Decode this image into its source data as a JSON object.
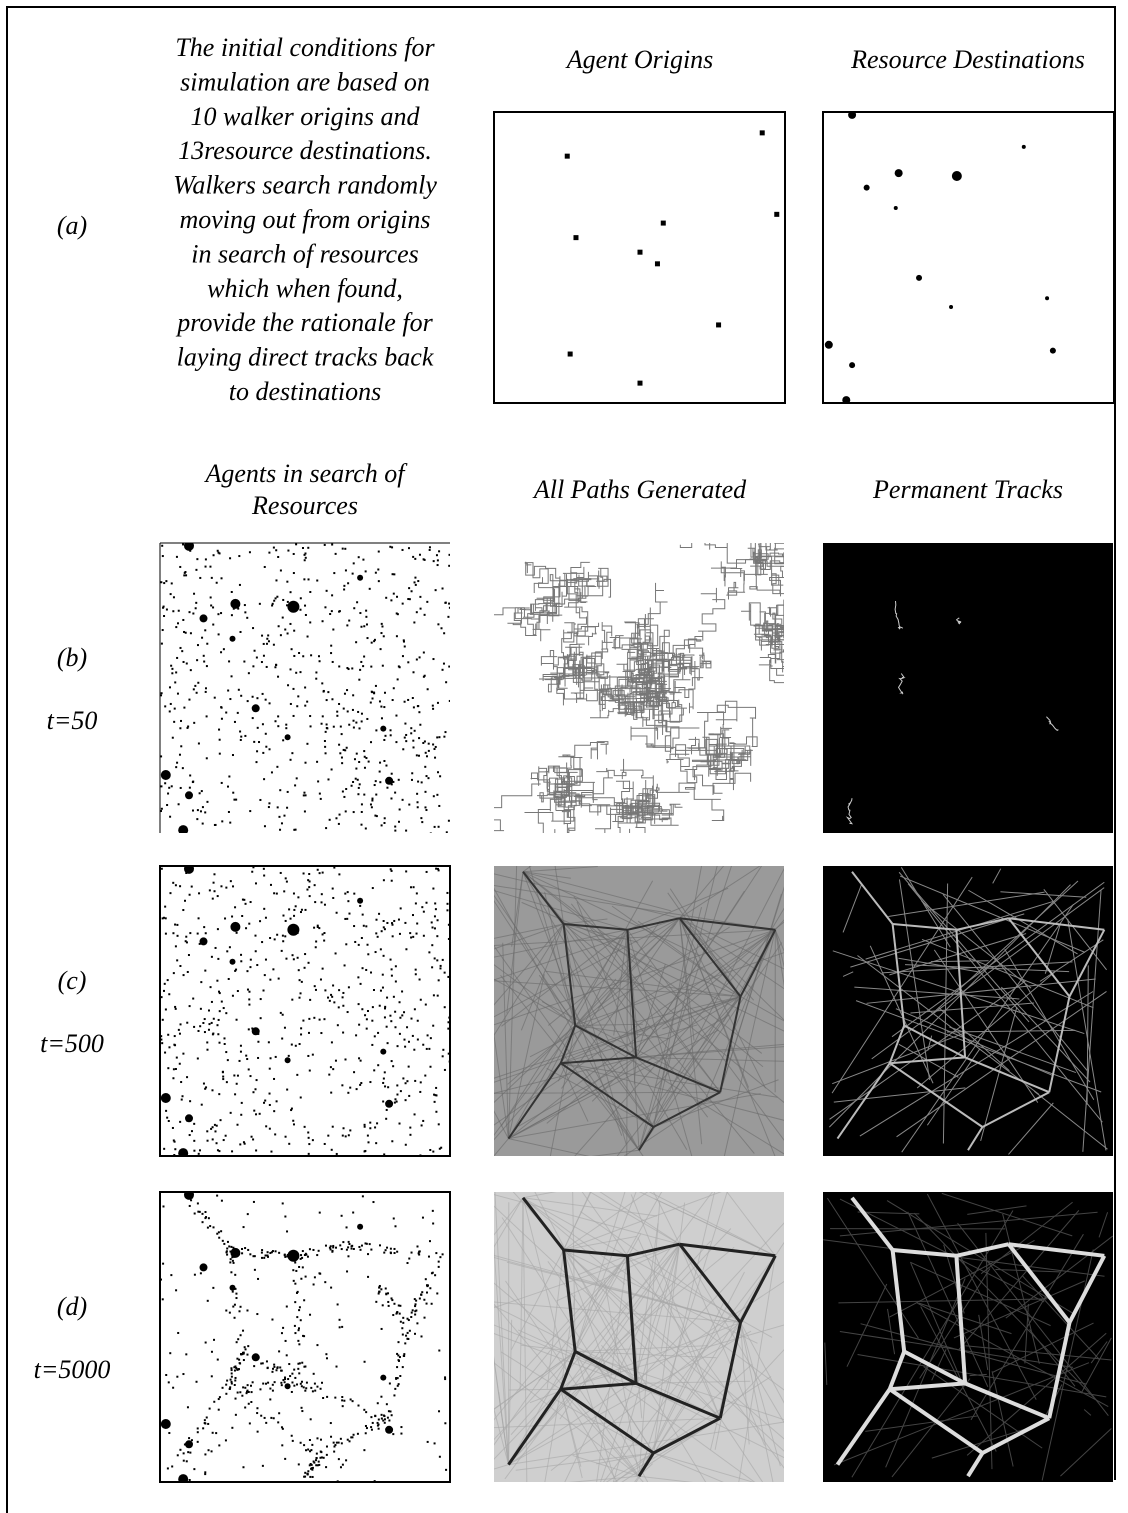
{
  "header": {
    "row_label": "(a)",
    "description": [
      "The initial conditions for",
      "simulation are based on",
      "10 walker origins and",
      "13resource destinations.",
      "Walkers search randomly",
      "moving out from origins",
      "in search of resources",
      "which when found,",
      "provide the rationale  for",
      "laying direct tracks back",
      "to destinations"
    ],
    "panels": [
      "Agent Origins",
      "Resource Destinations"
    ]
  },
  "column_titles": [
    [
      "Agents in search of",
      "Resources"
    ],
    "All Paths Generated",
    "Permanent Tracks"
  ],
  "rows": [
    {
      "label": "(b)",
      "time": "t=50"
    },
    {
      "label": "(c)",
      "time": "t=500"
    },
    {
      "label": "(d)",
      "time": "t=5000"
    }
  ]
}
